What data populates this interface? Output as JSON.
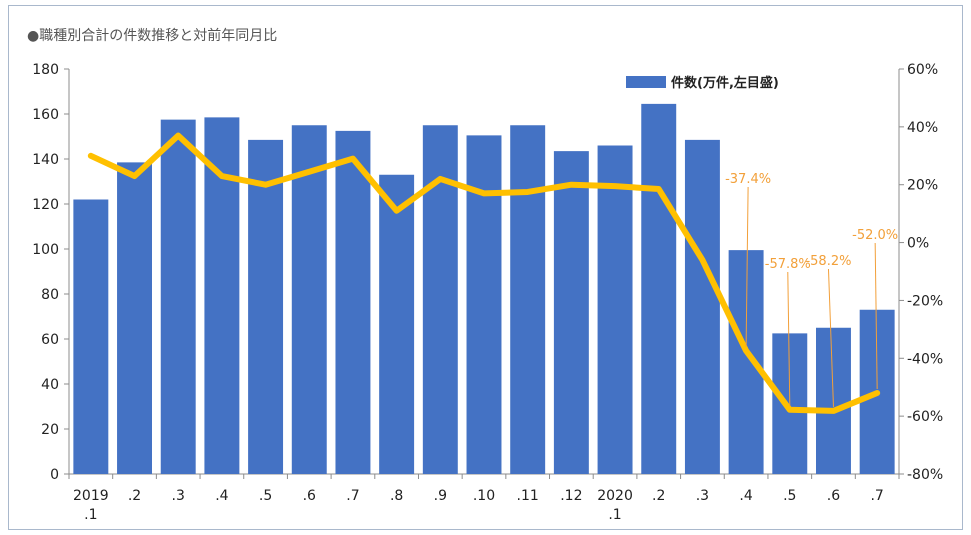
{
  "chart_data": {
    "type": "bar",
    "title": "●職種別合計の件数推移と対前年同月比",
    "categories": [
      [
        "2019",
        ".1"
      ],
      [
        ".2"
      ],
      [
        ".3"
      ],
      [
        ".4"
      ],
      [
        ".5"
      ],
      [
        ".6"
      ],
      [
        ".7"
      ],
      [
        ".8"
      ],
      [
        ".9"
      ],
      [
        ".10"
      ],
      [
        ".11"
      ],
      [
        ".12"
      ],
      [
        "2020",
        ".1"
      ],
      [
        ".2"
      ],
      [
        ".3"
      ],
      [
        ".4"
      ],
      [
        ".5"
      ],
      [
        ".6"
      ],
      [
        ".7"
      ]
    ],
    "series": [
      {
        "name": "件数(万件,左目盛)",
        "type": "bar",
        "axis": "left",
        "color": "#4472c4",
        "values": [
          122,
          138.5,
          157.5,
          158.5,
          148.5,
          155,
          152.5,
          133,
          155,
          150.5,
          155,
          143.5,
          146,
          164.5,
          148.5,
          99.5,
          62.5,
          65,
          73
        ]
      },
      {
        "type": "line",
        "axis": "right",
        "color": "#ffc000",
        "values": [
          30,
          23,
          37,
          23,
          20,
          24.5,
          29,
          11,
          22,
          17,
          17.5,
          20,
          19.5,
          18.5,
          -6,
          -37.4,
          -57.8,
          -58.2,
          -52.0
        ]
      }
    ],
    "callouts": [
      {
        "index": 15,
        "text": "-37.4%"
      },
      {
        "index": 16,
        "text": "-57.8%"
      },
      {
        "index": 17,
        "text": "-58.2%"
      },
      {
        "index": 18,
        "text": "-52.0%"
      }
    ],
    "y_left": {
      "min": 0,
      "max": 180,
      "step": 20,
      "ticks": [
        "0",
        "20",
        "40",
        "60",
        "80",
        "100",
        "120",
        "140",
        "160",
        "180"
      ]
    },
    "y_right": {
      "min": -80,
      "max": 60,
      "step": 20,
      "ticks": [
        "-80%",
        "-60%",
        "-40%",
        "-20%",
        "0%",
        "20%",
        "40%",
        "60%"
      ]
    },
    "legend_position": "top-right",
    "callout_color": "#f2a03a"
  }
}
